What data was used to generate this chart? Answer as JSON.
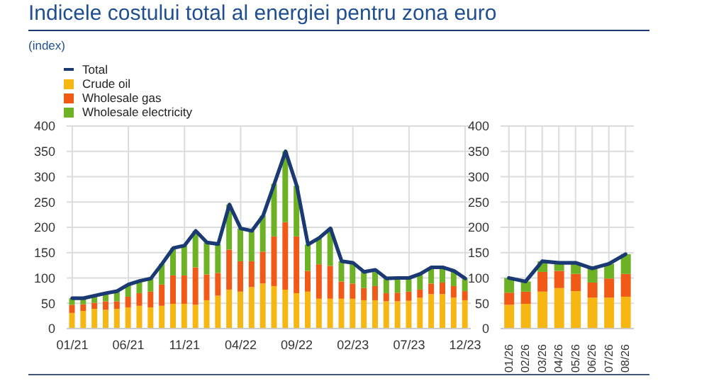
{
  "chart_data": [
    {
      "type": "bar",
      "title": "Indicele costului total al energiei pentru zona euro",
      "subtitle": "(index)",
      "stacked": true,
      "grid": true,
      "legend": "top left",
      "categories": [
        "01/21",
        null,
        null,
        null,
        null,
        "06/21",
        null,
        null,
        null,
        null,
        "11/21",
        null,
        null,
        null,
        null,
        "04/22",
        null,
        null,
        null,
        null,
        "09/22",
        null,
        null,
        null,
        null,
        "02/23",
        null,
        null,
        null,
        null,
        "07/23",
        null,
        null,
        null,
        null,
        "12/23"
      ],
      "ylim": [
        0,
        400
      ],
      "yticks": [
        0,
        50,
        100,
        150,
        200,
        250,
        300,
        350,
        400
      ],
      "series": [
        {
          "name": "Total",
          "type": "line",
          "color": "#1b3a73",
          "values": [
            60,
            60,
            65,
            70,
            74,
            87,
            94,
            99,
            128,
            159,
            164,
            193,
            170,
            167,
            245,
            198,
            193,
            223,
            286,
            350,
            282,
            166,
            179,
            198,
            133,
            130,
            112,
            116,
            99,
            100,
            100,
            108,
            121,
            121,
            114,
            99
          ]
        },
        {
          "name": "Crude oil",
          "color": "#f7b713",
          "values": [
            31,
            35,
            39,
            37,
            39,
            42,
            45,
            42,
            45,
            49,
            49,
            47,
            56,
            65,
            77,
            73,
            82,
            89,
            84,
            77,
            70,
            73,
            59,
            59,
            59,
            59,
            56,
            56,
            54,
            54,
            55,
            61,
            68,
            68,
            61,
            56
          ]
        },
        {
          "name": "Wholesale gas",
          "color": "#f05a16",
          "values": [
            16,
            13,
            12,
            17,
            15,
            21,
            25,
            31,
            42,
            56,
            56,
            74,
            51,
            45,
            79,
            60,
            51,
            63,
            98,
            133,
            112,
            41,
            68,
            65,
            34,
            30,
            24,
            28,
            16,
            17,
            18,
            16,
            21,
            23,
            23,
            18
          ]
        },
        {
          "name": "Wholesale electricity",
          "color": "#6cb224",
          "values": [
            13,
            12,
            14,
            16,
            20,
            24,
            24,
            26,
            41,
            54,
            59,
            72,
            63,
            57,
            89,
            65,
            60,
            71,
            104,
            140,
            100,
            52,
            52,
            74,
            40,
            41,
            32,
            32,
            29,
            29,
            27,
            31,
            32,
            30,
            30,
            25
          ]
        }
      ]
    },
    {
      "type": "bar",
      "stacked": true,
      "grid": true,
      "categories": [
        "01/26",
        "02/26",
        "03/26",
        "04/26",
        "05/26",
        "06/26",
        "07/26",
        "08/26"
      ],
      "ylim": [
        0,
        400
      ],
      "yticks": [
        0,
        50,
        100,
        150,
        200,
        250,
        300,
        350,
        400
      ],
      "series": [
        {
          "type": "line",
          "color": "#1b3a73",
          "values": [
            100,
            93,
            133,
            130,
            130,
            119,
            128,
            147
          ]
        },
        {
          "color": "#f7b713",
          "values": [
            47,
            49,
            73,
            80,
            74,
            61,
            61,
            63
          ]
        },
        {
          "color": "#f05a16",
          "values": [
            24,
            24,
            39,
            34,
            34,
            30,
            38,
            45
          ]
        },
        {
          "color": "#6cb224",
          "values": [
            29,
            20,
            21,
            16,
            22,
            28,
            29,
            39
          ]
        }
      ]
    }
  ]
}
